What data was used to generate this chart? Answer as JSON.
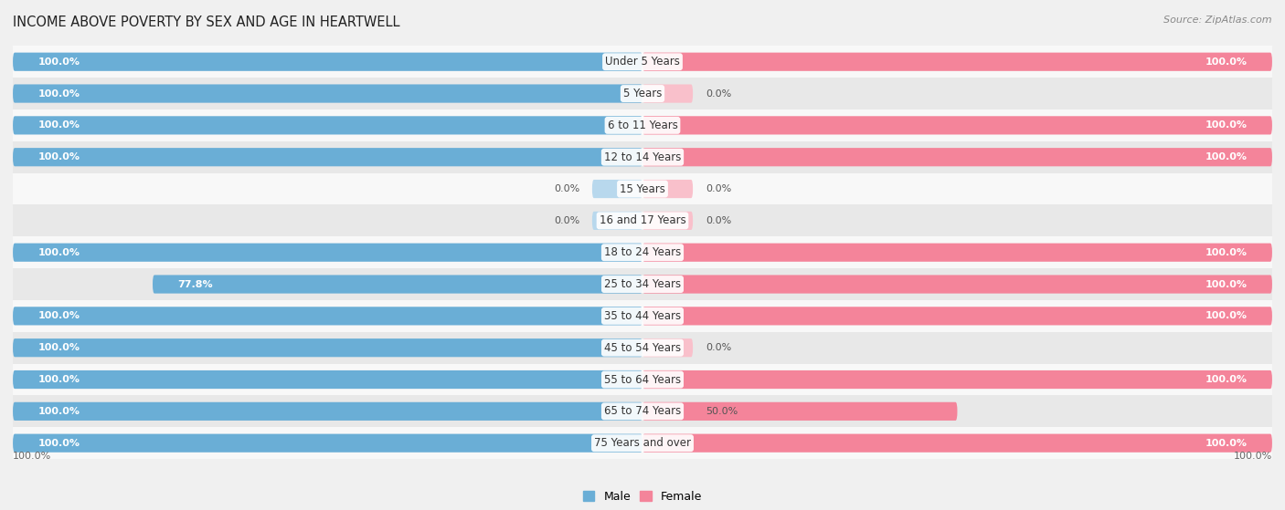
{
  "title": "INCOME ABOVE POVERTY BY SEX AND AGE IN HEARTWELL",
  "source": "Source: ZipAtlas.com",
  "categories": [
    "Under 5 Years",
    "5 Years",
    "6 to 11 Years",
    "12 to 14 Years",
    "15 Years",
    "16 and 17 Years",
    "18 to 24 Years",
    "25 to 34 Years",
    "35 to 44 Years",
    "45 to 54 Years",
    "55 to 64 Years",
    "65 to 74 Years",
    "75 Years and over"
  ],
  "male_values": [
    100.0,
    100.0,
    100.0,
    100.0,
    0.0,
    0.0,
    100.0,
    77.8,
    100.0,
    100.0,
    100.0,
    100.0,
    100.0
  ],
  "female_values": [
    100.0,
    0.0,
    100.0,
    100.0,
    0.0,
    0.0,
    100.0,
    100.0,
    100.0,
    0.0,
    100.0,
    50.0,
    100.0
  ],
  "male_color": "#6aaed6",
  "female_color": "#f4849a",
  "male_color_stub": "#b8d8ed",
  "female_color_stub": "#f9c0cb",
  "bar_height": 0.58,
  "bg_color": "#f0f0f0",
  "row_color_odd": "#e8e8e8",
  "row_color_even": "#f8f8f8",
  "label_fontsize": 8.5,
  "title_fontsize": 10.5,
  "value_fontsize": 8.0
}
